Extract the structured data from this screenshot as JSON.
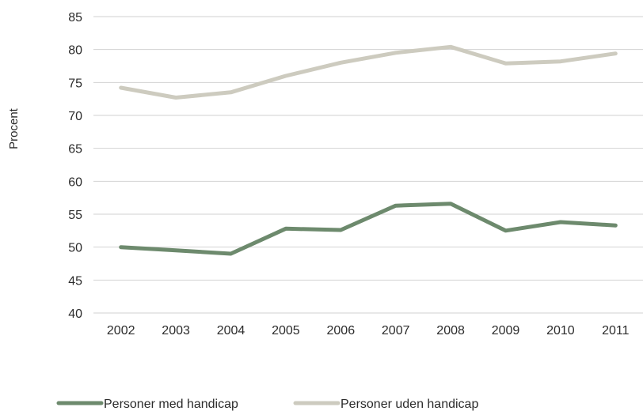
{
  "chart_data": {
    "type": "line",
    "title": "",
    "xlabel": "",
    "ylabel": "Procent",
    "x": [
      "2002",
      "2003",
      "2004",
      "2005",
      "2006",
      "2007",
      "2008",
      "2009",
      "2010",
      "2011"
    ],
    "ylim": [
      40,
      85
    ],
    "yticks": [
      40,
      45,
      50,
      55,
      60,
      65,
      70,
      75,
      80,
      85
    ],
    "grid": true,
    "legend_position": "bottom",
    "series": [
      {
        "name": "Personer med handicap",
        "color": "#6d8a6d",
        "values": [
          50.0,
          49.5,
          49.0,
          52.8,
          52.6,
          56.3,
          56.6,
          52.5,
          53.8,
          53.3
        ]
      },
      {
        "name": "Personer uden handicap",
        "color": "#cdcbbf",
        "values": [
          74.2,
          72.7,
          73.5,
          76.0,
          78.0,
          79.5,
          80.4,
          77.9,
          78.2,
          79.4
        ]
      }
    ]
  }
}
